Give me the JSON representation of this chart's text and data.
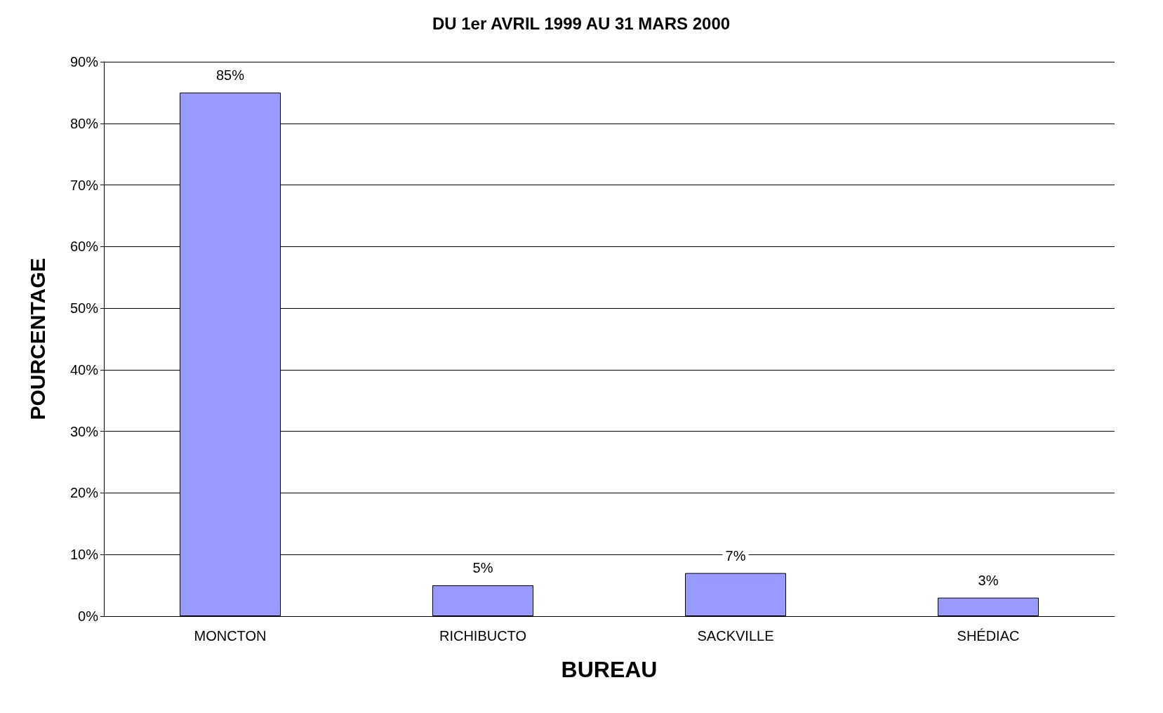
{
  "chart_data": {
    "type": "bar",
    "title": "DU 1er AVRIL 1999 AU 31 MARS 2000",
    "xlabel": "BUREAU",
    "ylabel": "POURCENTAGE",
    "categories": [
      "MONCTON",
      "RICHIBUCTO",
      "SACKVILLE",
      "SHÉDIAC"
    ],
    "values": [
      85,
      5,
      7,
      3
    ],
    "color": "#9999ff",
    "value_labels": [
      "85%",
      "5%",
      "7%",
      "3%"
    ],
    "ylim": [
      0,
      90
    ],
    "yticks": [
      {
        "value": 0,
        "label": "0%"
      },
      {
        "value": 10,
        "label": "10%"
      },
      {
        "value": 20,
        "label": "20%"
      },
      {
        "value": 30,
        "label": "30%"
      },
      {
        "value": 40,
        "label": "40%"
      },
      {
        "value": 50,
        "label": "50%"
      },
      {
        "value": 60,
        "label": "60%"
      },
      {
        "value": 70,
        "label": "70%"
      },
      {
        "value": 80,
        "label": "80%"
      },
      {
        "value": 90,
        "label": "90%"
      }
    ],
    "grid": "y"
  }
}
